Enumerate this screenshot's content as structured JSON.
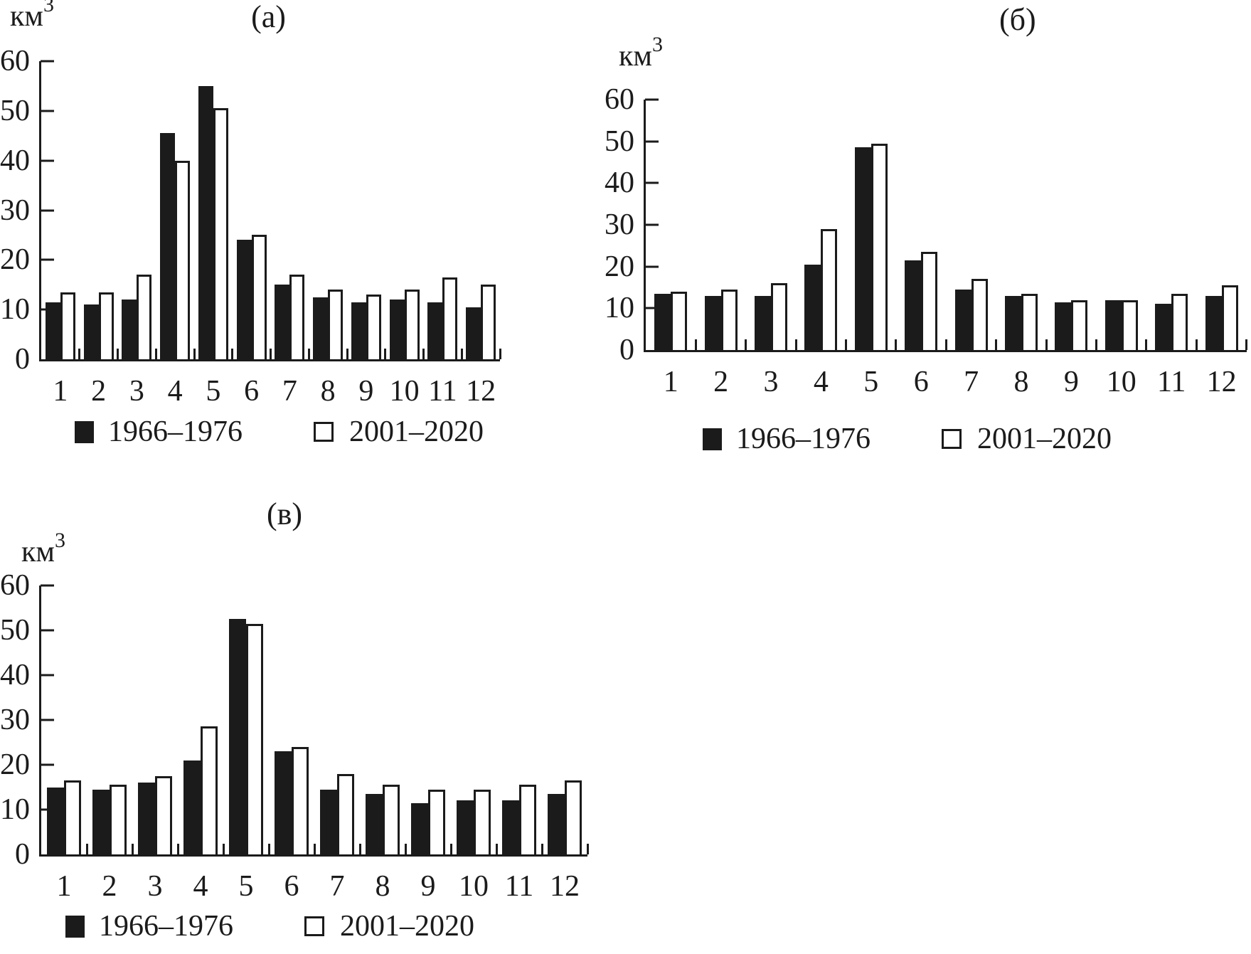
{
  "colors": {
    "ink": "#1b1b1b",
    "background": "#ffffff"
  },
  "chart_data": [
    {
      "type": "bar",
      "panel_label": "(а)",
      "unit": "км",
      "unit_exponent": "3",
      "categories": [
        "1",
        "2",
        "3",
        "4",
        "5",
        "6",
        "7",
        "8",
        "9",
        "10",
        "11",
        "12"
      ],
      "xlabel": "",
      "ylabel": "км3",
      "ylim": [
        0,
        60
      ],
      "yticks": [
        0,
        10,
        20,
        30,
        40,
        50,
        60
      ],
      "grid": false,
      "legend_position": "bottom",
      "series": [
        {
          "name": "1966–1976",
          "style": "filled",
          "color": "#1b1b1b",
          "values": [
            11.5,
            11,
            12,
            45.5,
            55,
            24,
            15,
            12.5,
            11.5,
            12,
            11.5,
            10.5
          ]
        },
        {
          "name": "2001–2020",
          "style": "outlined",
          "color": "#ffffff",
          "values": [
            13.5,
            13.5,
            17,
            40,
            50.5,
            25,
            17,
            14,
            13,
            14,
            16.5,
            15
          ]
        }
      ]
    },
    {
      "type": "bar",
      "panel_label": "(б)",
      "unit": "км",
      "unit_exponent": "3",
      "categories": [
        "1",
        "2",
        "3",
        "4",
        "5",
        "6",
        "7",
        "8",
        "9",
        "10",
        "11",
        "12"
      ],
      "xlabel": "",
      "ylabel": "км3",
      "ylim": [
        0,
        60
      ],
      "yticks": [
        0,
        10,
        20,
        30,
        40,
        50,
        60
      ],
      "grid": false,
      "legend_position": "bottom",
      "series": [
        {
          "name": "1966–1976",
          "style": "filled",
          "color": "#1b1b1b",
          "values": [
            13.5,
            13,
            13,
            20.5,
            48.5,
            21.5,
            14.5,
            13,
            11.5,
            12,
            11,
            13
          ]
        },
        {
          "name": "2001–2020",
          "style": "outlined",
          "color": "#ffffff",
          "values": [
            14,
            14.5,
            16,
            29,
            49.5,
            23.5,
            17,
            13.5,
            12,
            12,
            13.5,
            15.5
          ]
        }
      ]
    },
    {
      "type": "bar",
      "panel_label": "(в)",
      "unit": "км",
      "unit_exponent": "3",
      "categories": [
        "1",
        "2",
        "3",
        "4",
        "5",
        "6",
        "7",
        "8",
        "9",
        "10",
        "11",
        "12"
      ],
      "xlabel": "",
      "ylabel": "км3",
      "ylim": [
        0,
        60
      ],
      "yticks": [
        0,
        10,
        20,
        30,
        40,
        50,
        60
      ],
      "grid": false,
      "legend_position": "bottom",
      "series": [
        {
          "name": "1966–1976",
          "style": "filled",
          "color": "#1b1b1b",
          "values": [
            15,
            14.5,
            16,
            21,
            52.5,
            23,
            14.5,
            13.5,
            11.5,
            12,
            12,
            13.5
          ]
        },
        {
          "name": "2001–2020",
          "style": "outlined",
          "color": "#ffffff",
          "values": [
            16.5,
            15.5,
            17.5,
            28.5,
            51.5,
            24,
            18,
            15.5,
            14.5,
            14.5,
            15.5,
            16.5
          ]
        }
      ]
    }
  ]
}
